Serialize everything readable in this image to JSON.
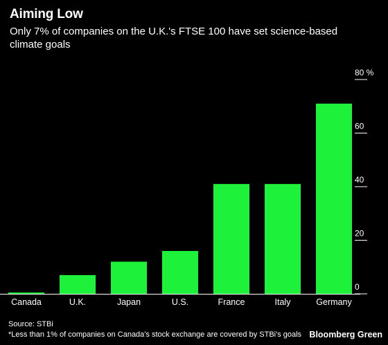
{
  "header": {
    "title": "Aiming Low",
    "subtitle": "Only 7% of companies on the U.K.'s FTSE 100 have set science-based climate goals"
  },
  "footer": {
    "source": "Source: STBi",
    "note": "*Less than 1% of companies on Canada's stock exchange are covered by STBi's goals",
    "brand": "Bloomberg Green"
  },
  "chart_data": {
    "type": "bar",
    "title": "Aiming Low",
    "subtitle": "Only 7% of companies on the U.K.'s FTSE 100 have set science-based climate goals",
    "categories": [
      "Canada",
      "U.K.",
      "Japan",
      "U.S.",
      "France",
      "Italy",
      "Germany"
    ],
    "values": [
      0.5,
      7,
      12,
      16,
      41,
      41,
      71
    ],
    "ylim": [
      0,
      80
    ],
    "yticks": [
      0,
      20,
      40,
      60,
      80
    ],
    "ytick_labels": [
      "0",
      "20",
      "40",
      "60",
      "80 %"
    ],
    "y_axis_side": "right",
    "grid": false,
    "bar_color": "#1ef13a",
    "background": "#000000"
  }
}
